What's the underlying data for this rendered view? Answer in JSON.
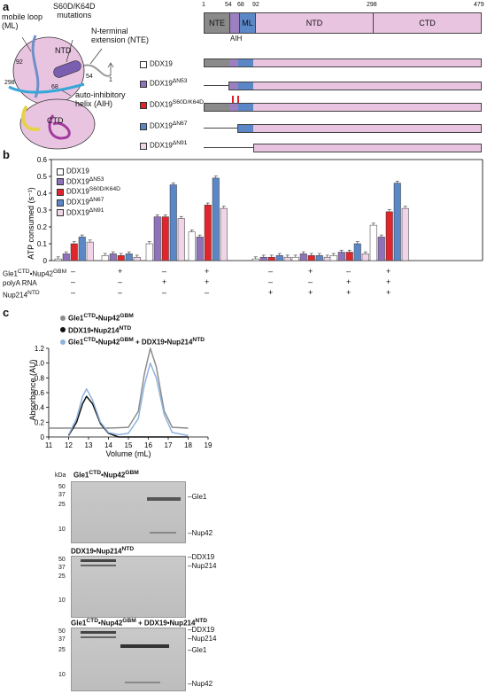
{
  "panel_a": {
    "label": "a",
    "structure_labels": {
      "mobile_loop": "mobile loop\n(ML)",
      "mutations": "S60D/K64D\nmutations",
      "nte": "N-terminal\nextension (NTE)",
      "ntd": "NTD",
      "ctd": "CTD",
      "aih": "auto-inhibitory\nhelix (AIH)",
      "n92": "92",
      "n298": "298",
      "n68": "68",
      "n54": "54",
      "n1": "1"
    },
    "domain_numbers": [
      "1",
      "54",
      "68",
      "92",
      "298",
      "479"
    ],
    "domain_segments": [
      "NTE",
      "ML",
      "NTD",
      "CTD"
    ],
    "aih_label": "AIH",
    "constructs": [
      {
        "name": "DDX19",
        "sup": ""
      },
      {
        "name": "DDX19",
        "sup": "ΔN53"
      },
      {
        "name": "DDX19",
        "sup": "S60D/K64D"
      },
      {
        "name": "DDX19",
        "sup": "ΔN67"
      },
      {
        "name": "DDX19",
        "sup": "ΔN91"
      }
    ],
    "colors": {
      "nte": "#8a8a8a",
      "aih": "#9b7fc1",
      "ml": "#5b87c7",
      "body": "#e8c4e1",
      "mut": "#e01f26"
    }
  },
  "panel_b": {
    "label": "b",
    "row_labels": [
      "Gle1CTD•Nup42GBM",
      "polyA RNA",
      "Nup214NTD"
    ],
    "row_label_parts": [
      {
        "a": "Gle1",
        "s1": "CTD",
        "b": "•Nup42",
        "s2": "GBM"
      },
      {
        "a": "polyA RNA",
        "s1": "",
        "b": "",
        "s2": ""
      },
      {
        "a": "Nup214",
        "s1": "NTD",
        "b": "",
        "s2": ""
      }
    ],
    "conditions": [
      [
        "–",
        "+",
        "–",
        "+",
        "–",
        "+",
        "–",
        "+"
      ],
      [
        "–",
        "–",
        "+",
        "+",
        "–",
        "–",
        "+",
        "+"
      ],
      [
        "–",
        "–",
        "–",
        "–",
        "+",
        "+",
        "+",
        "+"
      ]
    ]
  },
  "chart_data": [
    {
      "type": "bar",
      "ylabel": "ATP consumed (s⁻¹)",
      "ylim": [
        0,
        0.6
      ],
      "yticks": [
        "0",
        "0.1",
        "0.2",
        "0.3",
        "0.4",
        "0.5",
        "0.6"
      ],
      "legend_position": "top-left",
      "categories": [
        "1",
        "2",
        "3",
        "4",
        "5",
        "6",
        "7",
        "8"
      ],
      "series": [
        {
          "name": "DDX19",
          "sup": "",
          "color": "#ffffff",
          "values": [
            0.01,
            0.03,
            0.1,
            0.17,
            0.01,
            0.02,
            0.03,
            0.21
          ]
        },
        {
          "name": "DDX19",
          "sup": "ΔN53",
          "color": "#8f73ba",
          "values": [
            0.04,
            0.04,
            0.26,
            0.14,
            0.02,
            0.04,
            0.05,
            0.14
          ]
        },
        {
          "name": "DDX19",
          "sup": "S60D/K64D",
          "color": "#e0262c",
          "values": [
            0.1,
            0.03,
            0.26,
            0.33,
            0.02,
            0.03,
            0.05,
            0.29
          ]
        },
        {
          "name": "DDX19",
          "sup": "ΔN67",
          "color": "#5b87c7",
          "values": [
            0.14,
            0.04,
            0.45,
            0.49,
            0.03,
            0.03,
            0.1,
            0.46
          ]
        },
        {
          "name": "DDX19",
          "sup": "ΔN91",
          "color": "#f0d4e8",
          "values": [
            0.11,
            0.02,
            0.25,
            0.31,
            0.02,
            0.02,
            0.04,
            0.31
          ]
        }
      ]
    },
    {
      "type": "line",
      "xlabel": "Volume (mL)",
      "ylabel": "Absorbance (AU)",
      "xlim": [
        11,
        19
      ],
      "ylim": [
        0,
        1.2
      ],
      "xticks": [
        "11",
        "12",
        "13",
        "14",
        "15",
        "16",
        "17",
        "18",
        "19"
      ],
      "yticks": [
        "0",
        "0.2",
        "0.4",
        "0.6",
        "0.8",
        "1.0",
        "1.2"
      ],
      "legend_position": "top-left",
      "series": [
        {
          "name": "Gle1CTD•Nup42GBM",
          "parts": {
            "a": "Gle1",
            "s1": "CTD",
            "b": "•Nup42",
            "s2": "GBM"
          },
          "color": "#8c8c8c",
          "x": [
            11,
            12,
            12.5,
            13,
            13.5,
            14,
            15,
            15.5,
            15.8,
            16.1,
            16.4,
            16.8,
            17.2,
            18
          ],
          "y": [
            0.12,
            0.12,
            0.12,
            0.12,
            0.12,
            0.12,
            0.13,
            0.35,
            0.85,
            1.2,
            0.95,
            0.35,
            0.13,
            0.12
          ]
        },
        {
          "name": "DDX19•Nup214NTD",
          "parts": {
            "a": "DDX19•Nup214",
            "s1": "NTD",
            "b": "",
            "s2": ""
          },
          "color": "#111111",
          "x": [
            12,
            12.4,
            12.7,
            12.9,
            13.2,
            13.6,
            14,
            14.5,
            15,
            16,
            18
          ],
          "y": [
            0.02,
            0.2,
            0.45,
            0.55,
            0.45,
            0.18,
            0.05,
            0.0,
            0.0,
            0.0,
            0.0
          ]
        },
        {
          "name": "Gle1CTD•Nup42GBM + DDX19•Nup214NTD",
          "parts": {
            "a": "Gle1",
            "s1": "CTD",
            "b": "•Nup42",
            "s2": "GBM",
            "c": " + DDX19•Nup214",
            "s3": "NTD"
          },
          "color": "#8fb3de",
          "x": [
            12,
            12.4,
            12.7,
            12.9,
            13.2,
            13.6,
            14,
            14.5,
            15,
            15.5,
            15.8,
            16.1,
            16.4,
            16.8,
            17.2,
            18
          ],
          "y": [
            0.03,
            0.25,
            0.55,
            0.65,
            0.5,
            0.2,
            0.06,
            0.03,
            0.05,
            0.25,
            0.7,
            1.0,
            0.8,
            0.3,
            0.06,
            0.02
          ]
        }
      ]
    }
  ],
  "panel_c": {
    "label": "c",
    "kda": "kDa",
    "gels": [
      {
        "title_parts": {
          "a": "Gle1",
          "s1": "CTD",
          "b": "•Nup42",
          "s2": "GBM",
          "c": "",
          "s3": ""
        },
        "markers": [
          "50",
          "37",
          "25",
          "10"
        ],
        "bands": [
          "Gle1",
          "Nup42"
        ]
      },
      {
        "title_parts": {
          "a": "DDX19•Nup214",
          "s1": "NTD",
          "b": "",
          "s2": "",
          "c": "",
          "s3": ""
        },
        "markers": [
          "50",
          "37",
          "25",
          "10"
        ],
        "bands": [
          "DDX19",
          "Nup214"
        ]
      },
      {
        "title_parts": {
          "a": "Gle1",
          "s1": "CTD",
          "b": "•Nup42",
          "s2": "GBM",
          "c": " + DDX19•Nup214",
          "s3": "NTD"
        },
        "markers": [
          "50",
          "37",
          "25",
          "10"
        ],
        "bands": [
          "DDX19",
          "Nup214",
          "Gle1",
          "Nup42"
        ]
      }
    ]
  }
}
